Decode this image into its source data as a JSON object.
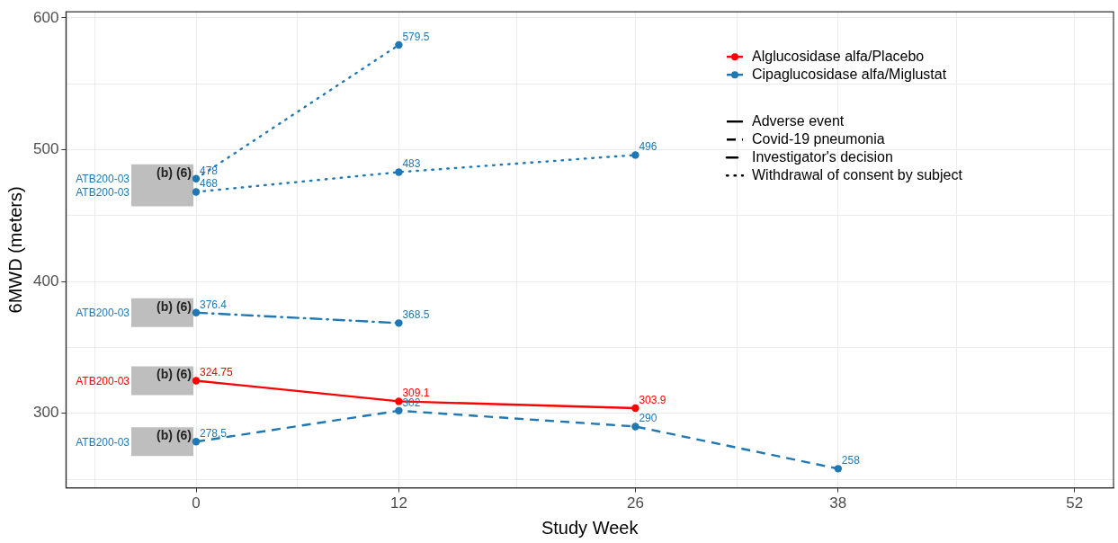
{
  "chart_data": {
    "type": "line",
    "xlabel": "Study Week",
    "ylabel": "6MWD (meters)",
    "xlim": [
      -7.7,
      54.3
    ],
    "xticks": [
      {
        "value": -6,
        "label": null
      },
      0,
      {
        "value": 6,
        "label": null
      },
      12,
      {
        "value": 19,
        "label": null
      },
      26,
      {
        "value": 32,
        "label": null
      },
      38,
      {
        "value": 45,
        "label": null
      },
      52
    ],
    "ylim": [
      243.5,
      604.6
    ],
    "yticks": [
      {
        "value": 250,
        "label": null
      },
      300,
      {
        "value": 350,
        "label": null
      },
      400,
      {
        "value": 450,
        "label": null
      },
      500,
      {
        "value": 550,
        "label": null
      },
      600
    ],
    "grid": true,
    "legend": "top right",
    "marker": "circle",
    "data_labels": true,
    "series": [
      {
        "name": "Alglucosidase alfa/Placebo",
        "color": "#ff0000",
        "line_style": "solid",
        "x": [
          0,
          12,
          26
        ],
        "values": [
          324.75,
          309.1,
          303.9
        ]
      },
      {
        "name": "Cipaglucosidase alfa/Miglustat",
        "color": "#1f78b4",
        "line_style": "dashed",
        "x": [
          0,
          12,
          26,
          38
        ],
        "values": [
          278.5,
          302,
          290,
          258
        ]
      },
      {
        "color": "#1f78b4",
        "line_style": "dashdot",
        "x": [
          0,
          12
        ],
        "values": [
          376.4,
          368.5
        ]
      },
      {
        "color": "#1f78b4",
        "line_style": "dotted",
        "x": [
          0,
          12
        ],
        "values": [
          478,
          579.5
        ]
      },
      {
        "color": "#1f78b4",
        "line_style": "dotted",
        "x": [
          0,
          12,
          26
        ],
        "values": [
          468,
          483,
          496
        ]
      }
    ],
    "annotations": [
      "ATB200-03",
      "ATB200-03",
      "ATB200-03",
      "ATB200-03",
      "ATB200-03",
      "(b) (6)",
      "(b) (6)",
      "(b) (6)",
      "(b) (6)",
      "Adverse event",
      "Covid-19 pneumonia",
      "Investigator's decision",
      "Withdrawal of consent by subject"
    ]
  }
}
